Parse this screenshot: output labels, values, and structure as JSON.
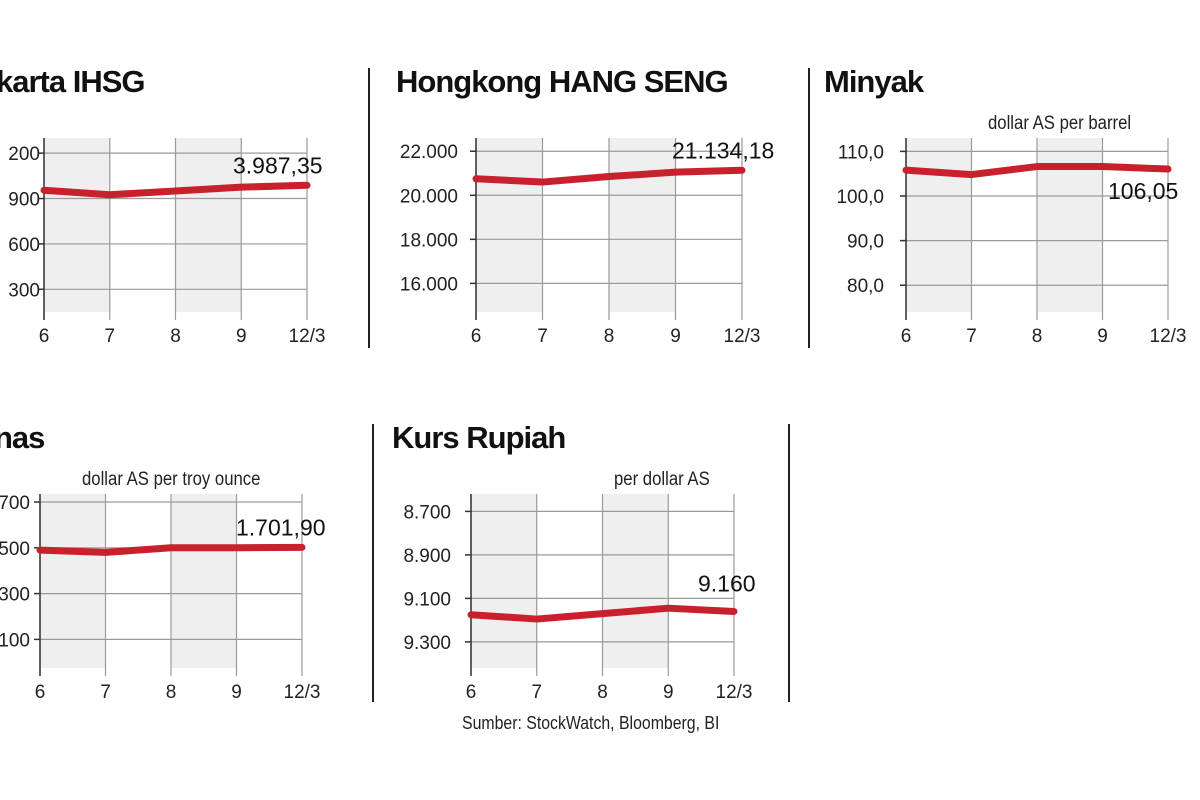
{
  "colors": {
    "line": "#c8202d",
    "band": "#efefef",
    "grid": "#9a9a9a",
    "axis": "#333333",
    "text": "#222222"
  },
  "source_note": "Sumber: StockWatch, Bloomberg, BI",
  "chart_data": [
    {
      "type": "line",
      "title": "karta IHSG",
      "unit": "",
      "categories": [
        "6",
        "7",
        "8",
        "9",
        "12/3"
      ],
      "y_ticks": [
        "200",
        "900",
        "600",
        "300"
      ],
      "y_tick_values": [
        4200,
        3900,
        3600,
        3300
      ],
      "ylim": [
        3150,
        4300
      ],
      "values": [
        3955,
        3925,
        3950,
        3975,
        3987.35
      ],
      "end_label": "3.987,35",
      "inverted": false,
      "grid": true
    },
    {
      "type": "line",
      "title": "Hongkong HANG SENG",
      "unit": "",
      "categories": [
        "6",
        "7",
        "8",
        "9",
        "12/3"
      ],
      "y_ticks": [
        "22.000",
        "20.000",
        "18.000",
        "16.000"
      ],
      "y_tick_values": [
        22000,
        20000,
        18000,
        16000
      ],
      "ylim": [
        14700,
        22600
      ],
      "values": [
        20750,
        20600,
        20850,
        21050,
        21134.18
      ],
      "end_label": "21.134,18",
      "inverted": false,
      "grid": true
    },
    {
      "type": "line",
      "title": "Minyak",
      "unit": "dollar AS per barrel",
      "categories": [
        "6",
        "7",
        "8",
        "9",
        "12/3"
      ],
      "y_ticks": [
        "110,0",
        "100,0",
        "90,0",
        "80,0"
      ],
      "y_tick_values": [
        110,
        100,
        90,
        80
      ],
      "ylim": [
        74,
        113
      ],
      "values": [
        105.8,
        104.8,
        106.6,
        106.6,
        106.05
      ],
      "end_label": "106,05",
      "inverted": false,
      "grid": true
    },
    {
      "type": "line",
      "title": "nas",
      "unit": "dollar AS per troy ounce",
      "categories": [
        "6",
        "7",
        "8",
        "9",
        "12/3"
      ],
      "y_ticks": [
        "700",
        "500",
        "300",
        "100"
      ],
      "y_tick_values": [
        1900,
        1700,
        1500,
        1300
      ],
      "ylim": [
        1175,
        1935
      ],
      "values": [
        1690,
        1680,
        1700,
        1700,
        1701.9
      ],
      "end_label": "1.701,90",
      "inverted": false,
      "grid": true
    },
    {
      "type": "line",
      "title": "Kurs Rupiah",
      "unit": "per dollar AS",
      "categories": [
        "6",
        "7",
        "8",
        "9",
        "12/3"
      ],
      "y_ticks": [
        "8.700",
        "8.900",
        "9.100",
        "9.300"
      ],
      "y_tick_values": [
        8700,
        8900,
        9100,
        9300
      ],
      "ylim": [
        8620,
        9420
      ],
      "values": [
        9175,
        9195,
        9170,
        9145,
        9160
      ],
      "end_label": "9.160",
      "inverted": true,
      "grid": true
    }
  ]
}
